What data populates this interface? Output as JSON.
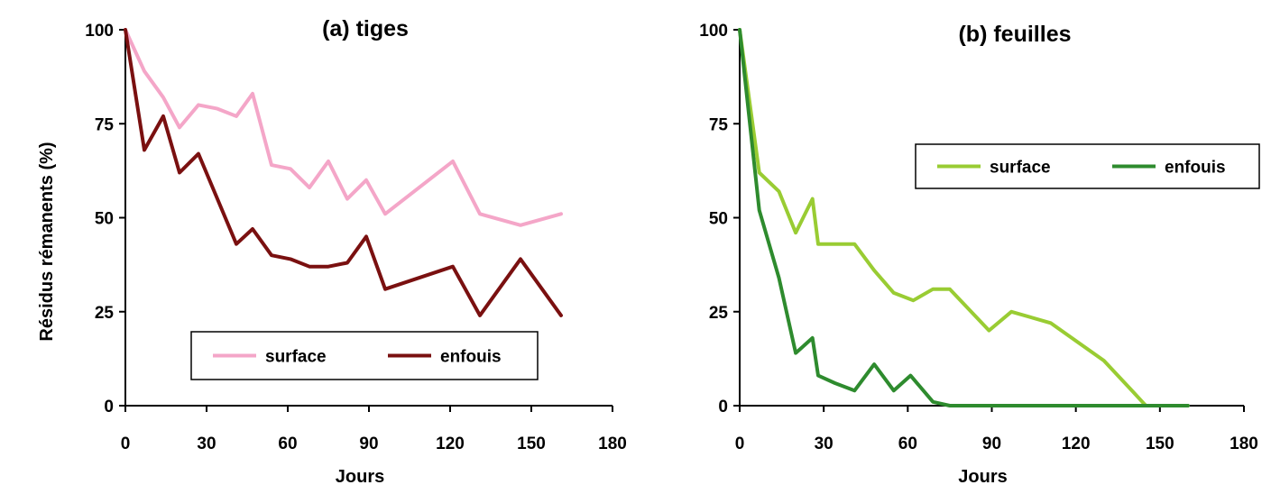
{
  "chart_data": [
    {
      "type": "line",
      "title": "(a) tiges",
      "xlabel": "Jours",
      "ylabel": "Résidus rémanents (%)",
      "xlim": [
        0,
        180
      ],
      "ylim": [
        0,
        100
      ],
      "xticks": [
        "0",
        "30",
        "60",
        "90",
        "120",
        "150",
        "180"
      ],
      "yticks": [
        "0",
        "25",
        "50",
        "75",
        "100"
      ],
      "legend_position": "bottom-center",
      "series": [
        {
          "name": "surface",
          "color": "#f4a6c8",
          "points": [
            [
              0,
              100
            ],
            [
              7,
              89
            ],
            [
              14,
              82
            ],
            [
              20,
              74
            ],
            [
              27,
              80
            ],
            [
              34,
              79
            ],
            [
              41,
              77
            ],
            [
              47,
              83
            ],
            [
              54,
              64
            ],
            [
              61,
              63
            ],
            [
              68,
              58
            ],
            [
              75,
              65
            ],
            [
              82,
              55
            ],
            [
              89,
              60
            ],
            [
              96,
              51
            ],
            [
              121,
              65
            ],
            [
              131,
              51
            ],
            [
              146,
              48
            ],
            [
              161,
              51
            ]
          ]
        },
        {
          "name": "enfouis",
          "color": "#7a1010",
          "points": [
            [
              0,
              100
            ],
            [
              7,
              68
            ],
            [
              14,
              77
            ],
            [
              20,
              62
            ],
            [
              27,
              67
            ],
            [
              34,
              55
            ],
            [
              41,
              43
            ],
            [
              47,
              47
            ],
            [
              54,
              40
            ],
            [
              61,
              39
            ],
            [
              68,
              37
            ],
            [
              75,
              37
            ],
            [
              82,
              38
            ],
            [
              89,
              45
            ],
            [
              96,
              31
            ],
            [
              121,
              37
            ],
            [
              131,
              24
            ],
            [
              146,
              39
            ],
            [
              161,
              24
            ]
          ]
        }
      ]
    },
    {
      "type": "line",
      "title": "(b) feuilles",
      "xlabel": "Jours",
      "ylabel": "",
      "xlim": [
        0,
        180
      ],
      "ylim": [
        0,
        100
      ],
      "xticks": [
        "0",
        "30",
        "60",
        "90",
        "120",
        "150",
        "180"
      ],
      "yticks": [
        "0",
        "25",
        "50",
        "75",
        "100"
      ],
      "legend_position": "top-right",
      "series": [
        {
          "name": "surface",
          "color": "#99cc33",
          "points": [
            [
              0,
              100
            ],
            [
              7,
              62
            ],
            [
              14,
              57
            ],
            [
              20,
              46
            ],
            [
              26,
              55
            ],
            [
              28,
              43
            ],
            [
              34,
              43
            ],
            [
              41,
              43
            ],
            [
              48,
              36
            ],
            [
              55,
              30
            ],
            [
              62,
              28
            ],
            [
              69,
              31
            ],
            [
              75,
              31
            ],
            [
              89,
              20
            ],
            [
              97,
              25
            ],
            [
              111,
              22
            ],
            [
              130,
              12
            ],
            [
              140,
              4
            ],
            [
              145,
              0
            ],
            [
              160,
              0
            ]
          ]
        },
        {
          "name": "enfouis",
          "color": "#2e8b2e",
          "points": [
            [
              0,
              100
            ],
            [
              7,
              52
            ],
            [
              14,
              34
            ],
            [
              20,
              14
            ],
            [
              26,
              18
            ],
            [
              28,
              8
            ],
            [
              34,
              6
            ],
            [
              41,
              4
            ],
            [
              48,
              11
            ],
            [
              55,
              4
            ],
            [
              61,
              8
            ],
            [
              69,
              1
            ],
            [
              75,
              0
            ],
            [
              160,
              0
            ]
          ]
        }
      ]
    }
  ]
}
